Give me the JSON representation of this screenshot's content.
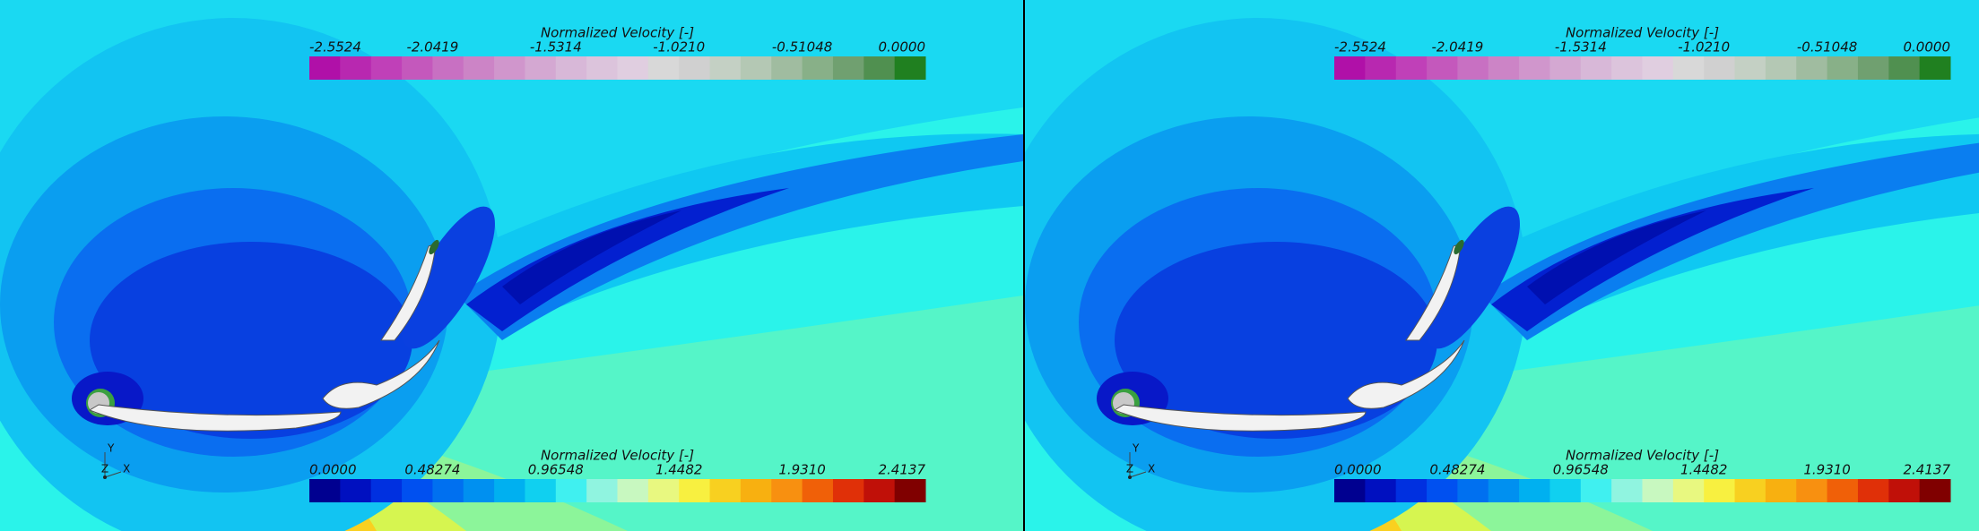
{
  "panels": [
    {
      "colorbar_top": {
        "title": "Normalized Velocity [-]",
        "ticks": [
          "-2.5524",
          "-2.0419",
          "-1.5314",
          "-1.0210",
          "-0.51048",
          "0.0000"
        ]
      },
      "colorbar_bottom": {
        "title": "Normalized Velocity [-]",
        "ticks": [
          "0.0000",
          "0.48274",
          "0.96548",
          "1.4482",
          "1.9310",
          "2.4137"
        ]
      },
      "triad": {
        "y": "Y",
        "z": "Z",
        "x": "X"
      }
    },
    {
      "colorbar_top": {
        "title": "Normalized Velocity [-]",
        "ticks": [
          "-2.5524",
          "-2.0419",
          "-1.5314",
          "-1.0210",
          "-0.51048",
          "0.0000"
        ]
      },
      "colorbar_bottom": {
        "title": "Normalized Velocity [-]",
        "ticks": [
          "0.0000",
          "0.48274",
          "0.96548",
          "1.4482",
          "1.9310",
          "2.4137"
        ]
      },
      "triad": {
        "y": "Y",
        "z": "Z",
        "x": "X"
      }
    }
  ]
}
